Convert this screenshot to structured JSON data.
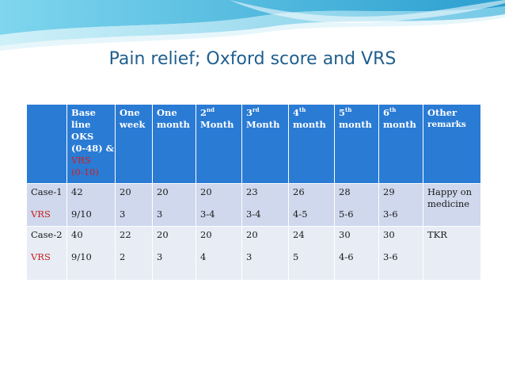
{
  "title": "Pain relief; Oxford score and VRS",
  "colors": {
    "title": "#1f5f8f",
    "header_bg": "#2a7bd4",
    "row_dark": "#cfd8ec",
    "row_light": "#e8ecf5",
    "vrs_red": "#c8201f"
  },
  "table": {
    "headers": {
      "baseline_l1": "Base",
      "baseline_l2": "line",
      "baseline_l3": "OKS",
      "baseline_l4": "(0-48) &",
      "baseline_l5": "VRS",
      "baseline_l6": "(0-10)",
      "week_l1": "One",
      "week_l2": "week",
      "month_l1": "One",
      "month_l2": "month",
      "m2_num": "2",
      "m2_sup": "nd",
      "m2_word": "Month",
      "m3_num": "3",
      "m3_sup": "rd",
      "m3_word": "Month",
      "m4_num": "4",
      "m4_sup": "th",
      "m4_word": "month",
      "m5_num": "5",
      "m5_sup": "th",
      "m5_word": "month",
      "m6_num": "6",
      "m6_sup": "th",
      "m6_word": "month",
      "other_l1": "Other",
      "other_l2": "remarks"
    },
    "rows": [
      {
        "label": "Case-1",
        "sublabel": "VRS",
        "oks": [
          "42",
          "20",
          "20",
          "20",
          "23",
          "26",
          "28",
          "29"
        ],
        "vrs": [
          "9/10",
          "3",
          "3",
          "3-4",
          "3-4",
          "4-5",
          "5-6",
          "3-6"
        ],
        "remark": "Happy on medicine"
      },
      {
        "label": "Case-2",
        "sublabel": "VRS",
        "oks": [
          "40",
          "22",
          "20",
          "20",
          "20",
          "24",
          "30",
          "30"
        ],
        "vrs": [
          "9/10",
          "2",
          "3",
          "4",
          "3",
          "5",
          "4-6",
          "3-6"
        ],
        "remark": "TKR"
      }
    ]
  }
}
